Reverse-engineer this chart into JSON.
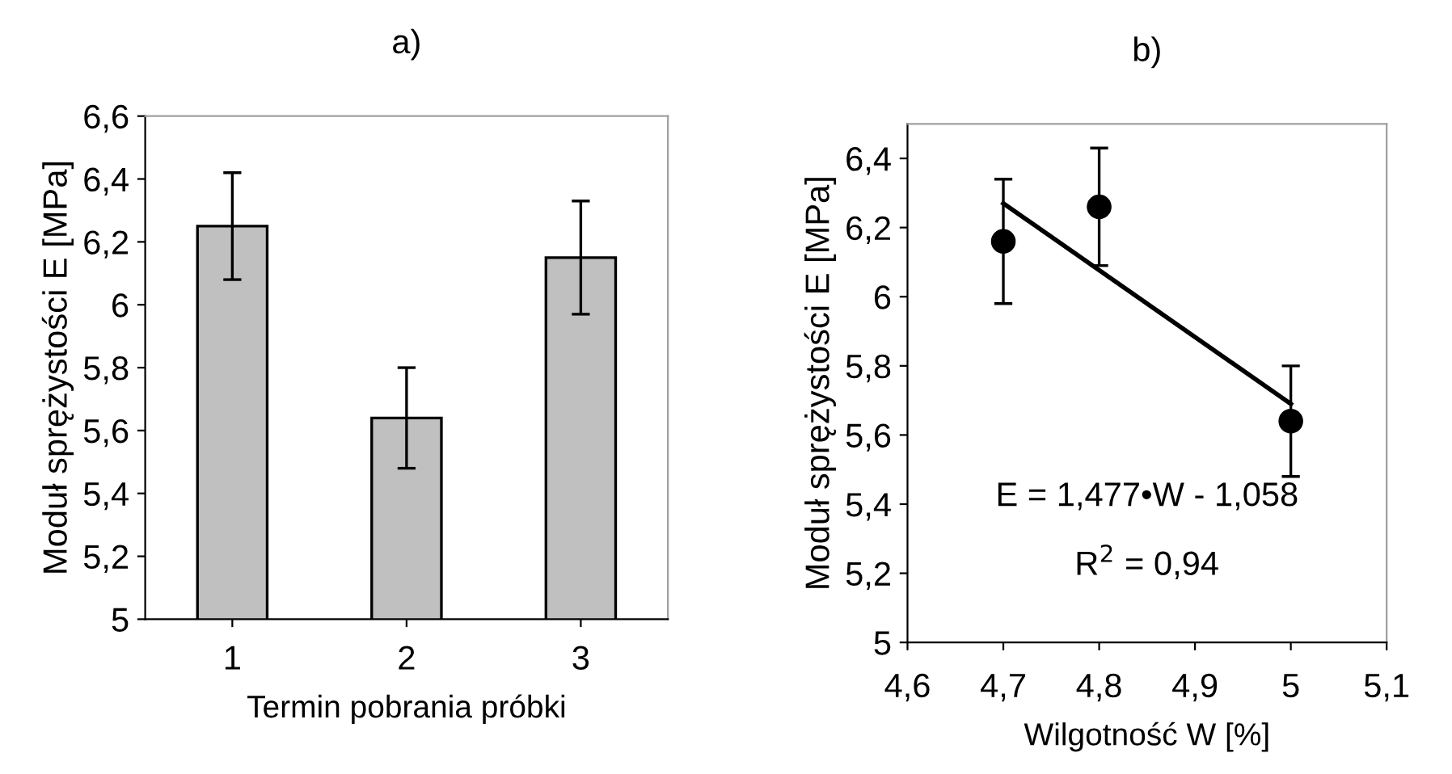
{
  "chart_data": [
    {
      "type": "bar",
      "title": "a)",
      "xlabel": "Termin pobrania próbki",
      "ylabel": "Moduł sprężystości E [MPa]",
      "categories": [
        "1",
        "2",
        "3"
      ],
      "series": [
        {
          "color": "#c0c0c0",
          "values": [
            6.25,
            5.64,
            6.15
          ],
          "errors": [
            0.17,
            0.16,
            0.18
          ]
        }
      ],
      "ylim": [
        5,
        6.6
      ],
      "yticks": [
        5,
        {
          "value": 5.2,
          "label": "5,2"
        },
        {
          "value": 5.4,
          "label": "5,4"
        },
        {
          "value": 5.6,
          "label": "5,6"
        },
        {
          "value": 5.8,
          "label": "5,8"
        },
        6,
        {
          "value": 6.2,
          "label": "6,2"
        },
        {
          "value": 6.4,
          "label": "6,4"
        },
        {
          "value": 6.6,
          "label": "6,6"
        }
      ],
      "grid": false
    },
    {
      "type": "scatter",
      "title": "b)",
      "xlabel": "Wilgotność W [%]",
      "ylabel": "Moduł sprężystości E [MPa]",
      "series": [
        {
          "type": "scatter",
          "color": "#000000",
          "x": [
            4.7,
            4.8,
            5.0
          ],
          "values": [
            6.16,
            6.26,
            5.64
          ],
          "errors": [
            0.18,
            0.17,
            0.16
          ],
          "marker": "circle"
        },
        {
          "type": "line",
          "color": "#000000",
          "x": [
            4.7,
            5.0
          ],
          "values": [
            6.27,
            5.69
          ],
          "marker": "none"
        }
      ],
      "xlim": [
        4.6,
        5.1
      ],
      "ylim": [
        5,
        6.5
      ],
      "xticks": [
        {
          "value": 4.6,
          "label": "4,6"
        },
        {
          "value": 4.7,
          "label": "4,7"
        },
        {
          "value": 4.8,
          "label": "4,8"
        },
        {
          "value": 4.9,
          "label": "4,9"
        },
        5,
        {
          "value": 5.1,
          "label": "5,1"
        }
      ],
      "yticks": [
        5,
        {
          "value": 5.2,
          "label": "5,2"
        },
        {
          "value": 5.4,
          "label": "5,4"
        },
        {
          "value": 5.6,
          "label": "5,6"
        },
        {
          "value": 5.8,
          "label": "5,8"
        },
        6,
        {
          "value": 6.2,
          "label": "6,2"
        },
        {
          "value": 6.4,
          "label": "6,4"
        }
      ],
      "annotations": [
        "E = 1,477•W - 1,058",
        "R$^{2}$ = 0,94"
      ],
      "grid": false
    }
  ]
}
